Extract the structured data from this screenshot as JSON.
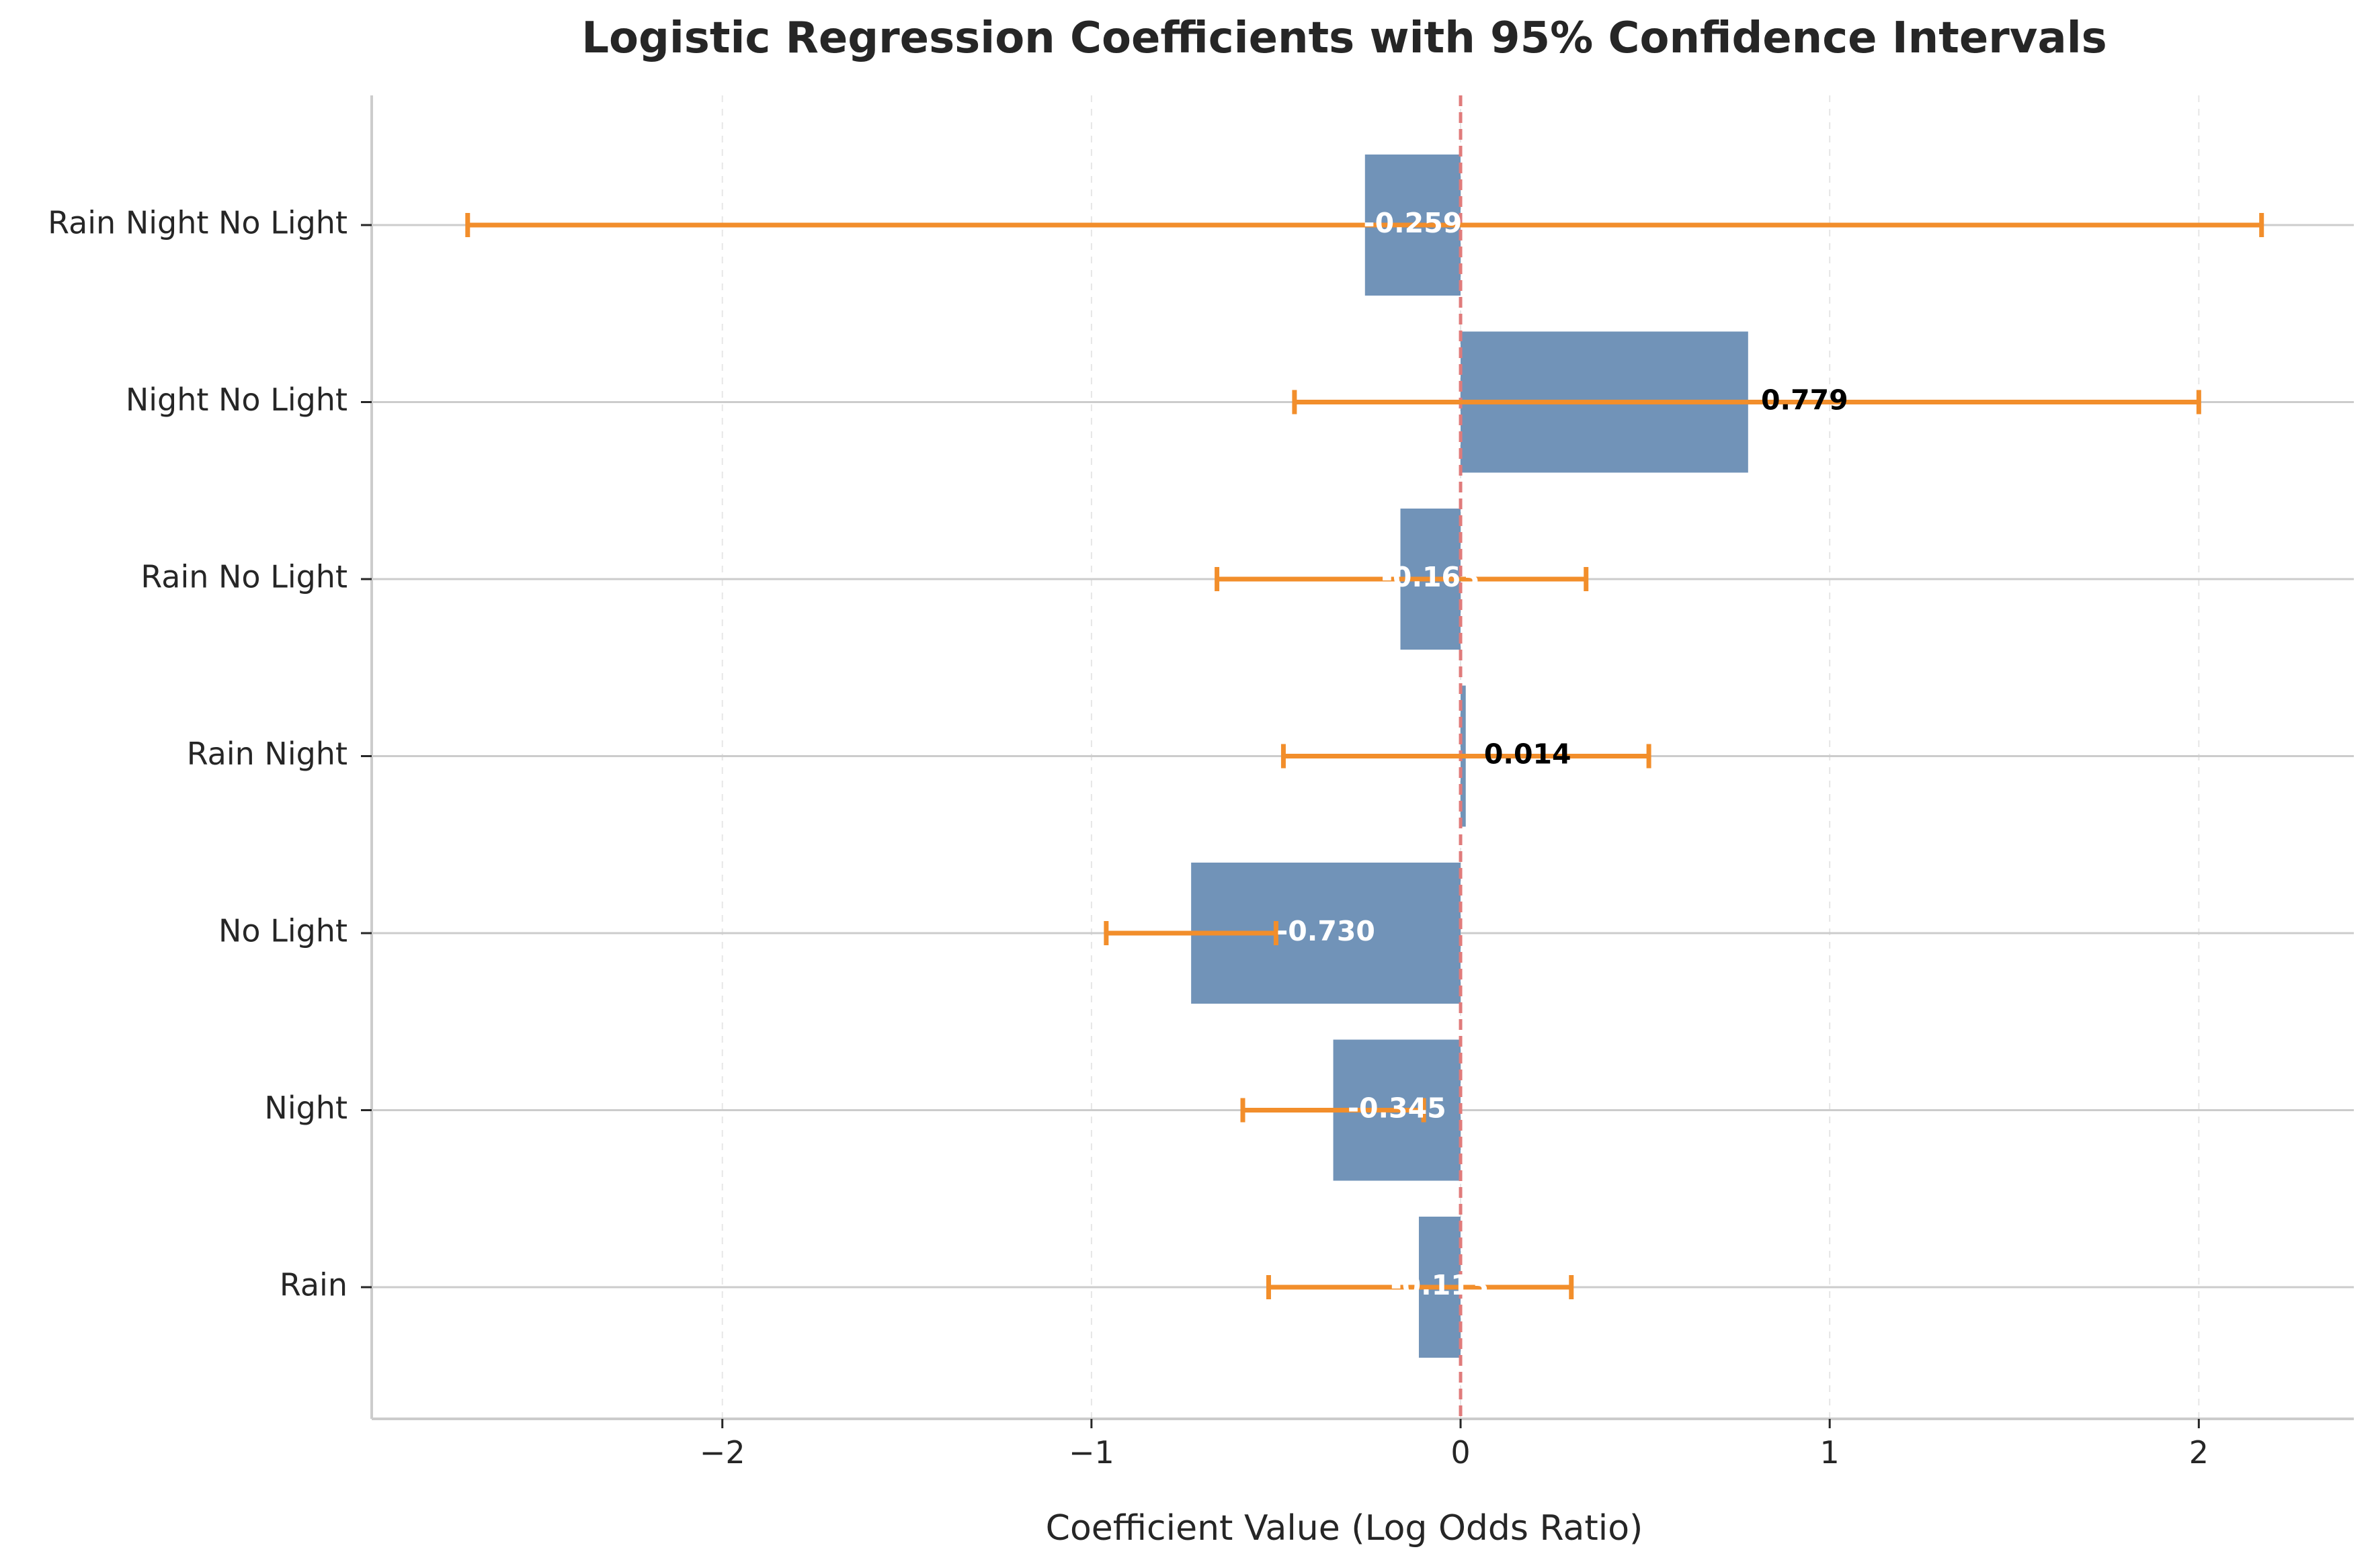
{
  "chart_data": {
    "type": "bar",
    "orientation": "horizontal",
    "title": "Logistic Regression Coefficients with 95% Confidence Intervals",
    "xlabel": "Coefficient Value (Log Odds Ratio)",
    "ylabel": "",
    "xlim": [
      -2.95,
      2.42
    ],
    "xticks": [
      -2,
      -1,
      0,
      1,
      2
    ],
    "xtick_labels": [
      "−2",
      "−1",
      "0",
      "1",
      "2"
    ],
    "categories": [
      "Rain",
      "Night",
      "No Light",
      "Rain Night",
      "Rain No Light",
      "Night No Light",
      "Rain Night No Light"
    ],
    "values": [
      -0.113,
      -0.345,
      -0.73,
      0.014,
      -0.163,
      0.779,
      -0.259
    ],
    "value_labels": [
      "-0.113",
      "-0.345",
      "-0.730",
      "0.014",
      "-0.163",
      "0.779",
      "-0.259"
    ],
    "ci_lower": [
      -0.52,
      -0.59,
      -0.96,
      -0.48,
      -0.66,
      -0.45,
      -2.69
    ],
    "ci_upper": [
      0.3,
      -0.1,
      -0.5,
      0.51,
      0.34,
      2.0,
      2.17
    ],
    "reference_line": 0,
    "grid": {
      "x": true,
      "y": true
    },
    "colors": {
      "bar": "#7193b8",
      "error_bar": "#f28e2b",
      "reference_line": "#e07b7b",
      "label_on_bar": "#ffffff",
      "label_outside": "#000000",
      "axis": "#cccccc",
      "text": "#262626"
    }
  }
}
